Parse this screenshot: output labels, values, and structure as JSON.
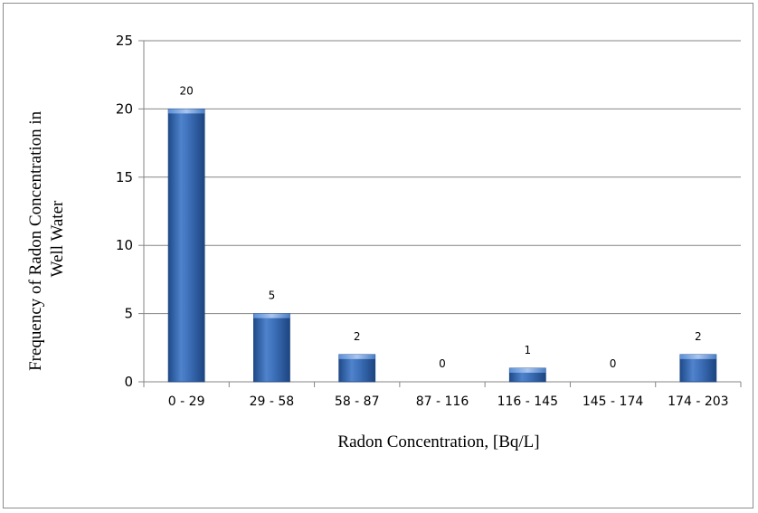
{
  "chart_data": {
    "type": "bar",
    "categories": [
      "0 - 29",
      "29 - 58",
      "58 - 87",
      "87 - 116",
      "116 - 145",
      "145 - 174",
      "174 - 203"
    ],
    "values": [
      20,
      5,
      2,
      0,
      1,
      0,
      2
    ],
    "xlabel": "Radon Concentration, [Bq/L]",
    "ylabel_lines": [
      "Frequency of Radon Concentration in",
      "Well Water"
    ],
    "ylim": [
      0,
      25
    ],
    "yticks": [
      0,
      5,
      10,
      15,
      20,
      25
    ],
    "grid": true,
    "data_labels": true,
    "colors": {
      "bar": "#3a6db5",
      "bar_light": "#7fa6df",
      "bar_dark": "#1f4a8a",
      "grid": "#868686"
    }
  }
}
